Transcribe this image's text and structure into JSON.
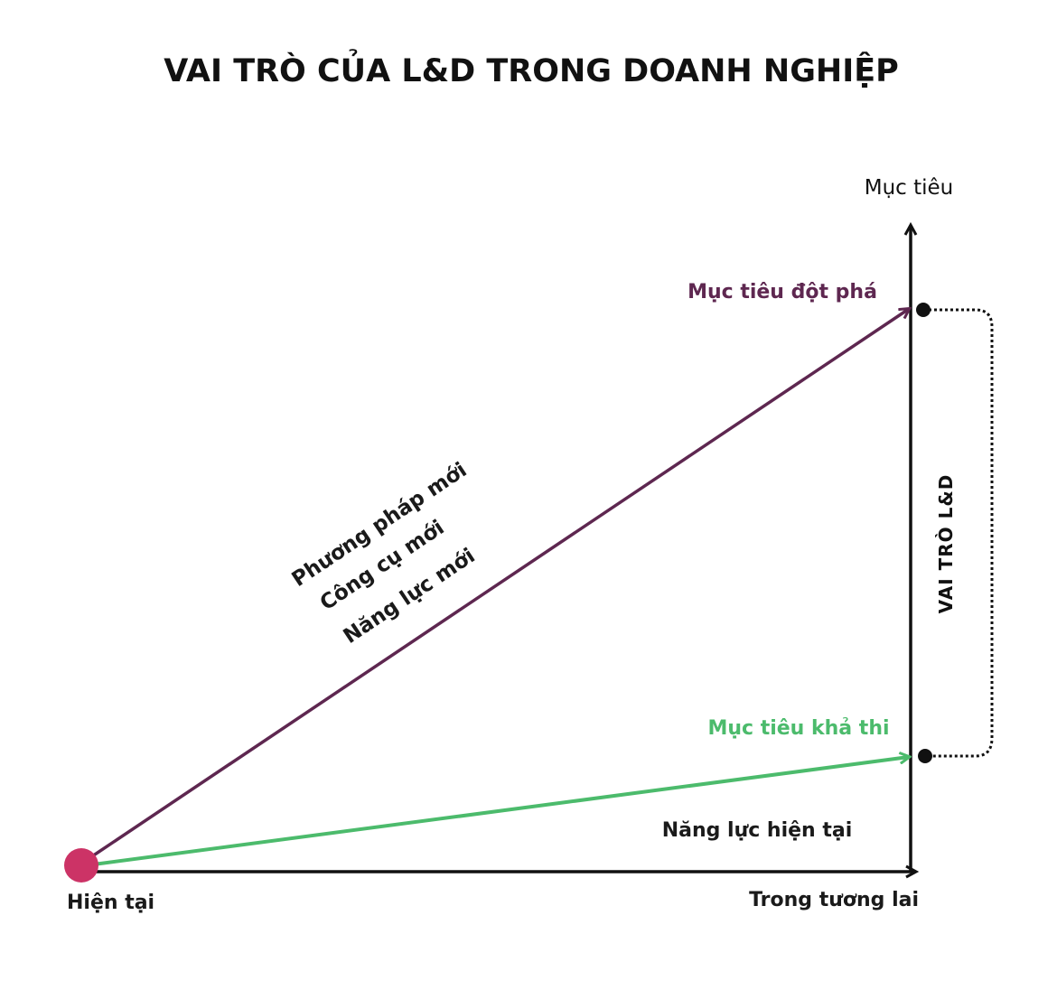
{
  "title": "VAI TRÒ CỦA L&D TRONG DOANH NGHIỆP",
  "axes": {
    "y_label": "Mục tiêu",
    "x_label": "Trong tương lai",
    "origin_label": "Hiện tại"
  },
  "breakthrough": {
    "label": "Mục tiêu đột phá",
    "color": "#5e2750",
    "means": [
      "Phương pháp mới",
      "Công cụ mới",
      "Năng lực mới"
    ]
  },
  "feasible": {
    "label": "Mục tiêu khả thi",
    "color": "#4cbb6c",
    "means_label": "Năng lực hiện tại"
  },
  "gap": {
    "label": "VAI TRÒ L&D"
  },
  "origin_color": "#cc3366"
}
